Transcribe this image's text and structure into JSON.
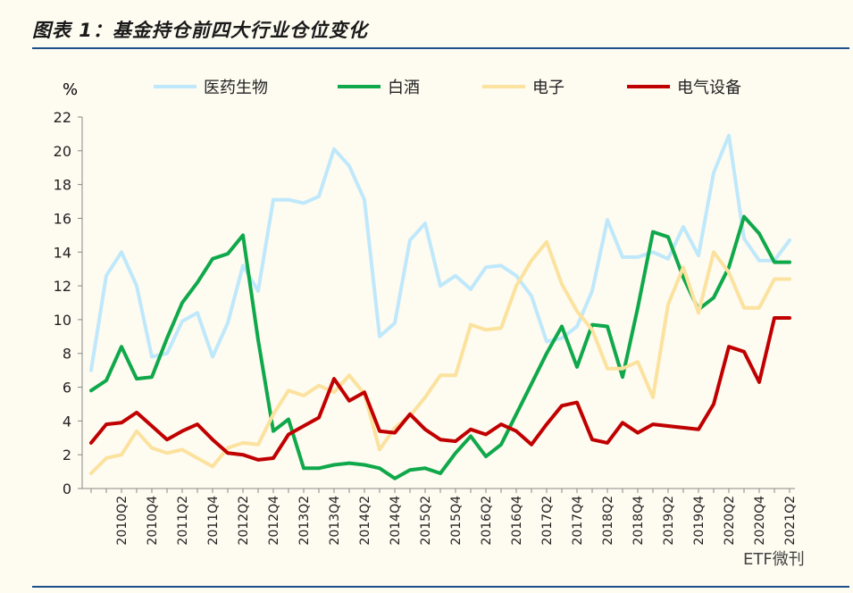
{
  "header": {
    "title": "图表 1：基金持仓前四大行业仓位变化"
  },
  "watermark": {
    "text": "ETF微刊"
  },
  "chart_data": {
    "type": "line",
    "title": "图表 1：基金持仓前四大行业仓位变化",
    "ylabel": "%",
    "ylim": [
      0,
      22
    ],
    "yticks": [
      0,
      2,
      4,
      6,
      8,
      10,
      12,
      14,
      16,
      18,
      20,
      22
    ],
    "grid": false,
    "legend_position": "top",
    "x_tick_labels": [
      "2010Q2",
      "2010Q4",
      "2011Q2",
      "2011Q4",
      "2012Q2",
      "2012Q4",
      "2013Q2",
      "2013Q4",
      "2014Q2",
      "2014Q4",
      "2015Q2",
      "2015Q4",
      "2016Q2",
      "2016Q4",
      "2017Q2",
      "2017Q4",
      "2018Q2",
      "2018Q4",
      "2019Q2",
      "2019Q4",
      "2020Q2",
      "2020Q4",
      "2021Q2"
    ],
    "x": [
      "2009Q4",
      "2010Q1",
      "2010Q2",
      "2010Q3",
      "2010Q4",
      "2011Q1",
      "2011Q2",
      "2011Q3",
      "2011Q4",
      "2012Q1",
      "2012Q2",
      "2012Q3",
      "2012Q4",
      "2013Q1",
      "2013Q2",
      "2013Q3",
      "2013Q4",
      "2014Q1",
      "2014Q2",
      "2014Q3",
      "2014Q4",
      "2015Q1",
      "2015Q2",
      "2015Q3",
      "2015Q4",
      "2016Q1",
      "2016Q2",
      "2016Q3",
      "2016Q4",
      "2017Q1",
      "2017Q2",
      "2017Q3",
      "2017Q4",
      "2018Q1",
      "2018Q2",
      "2018Q3",
      "2018Q4",
      "2019Q1",
      "2019Q2",
      "2019Q3",
      "2019Q4",
      "2020Q1",
      "2020Q2",
      "2020Q3",
      "2020Q4",
      "2021Q1",
      "2021Q2"
    ],
    "series": [
      {
        "name": "医药生物",
        "color": "#bfe8fb",
        "values": [
          7.0,
          12.6,
          14.0,
          12.0,
          7.8,
          8.0,
          9.9,
          10.4,
          7.8,
          9.8,
          13.2,
          11.7,
          17.1,
          17.1,
          16.9,
          17.3,
          20.1,
          19.1,
          17.1,
          9.0,
          9.8,
          14.7,
          15.7,
          12.0,
          12.6,
          11.8,
          13.1,
          13.2,
          12.6,
          11.4,
          8.7,
          8.9,
          9.6,
          11.7,
          15.9,
          13.7,
          13.7,
          14.0,
          13.6,
          15.5,
          13.8,
          18.7,
          20.9,
          14.8,
          13.5,
          13.5,
          14.7
        ]
      },
      {
        "name": "白酒",
        "color": "#0fa84a",
        "values": [
          5.8,
          6.4,
          8.4,
          6.5,
          6.6,
          8.9,
          11.0,
          12.2,
          13.6,
          13.9,
          15.0,
          8.8,
          3.4,
          4.1,
          1.2,
          1.2,
          1.4,
          1.5,
          1.4,
          1.2,
          0.6,
          1.1,
          1.2,
          0.9,
          2.1,
          3.1,
          1.9,
          2.6,
          4.4,
          6.2,
          8.0,
          9.6,
          7.2,
          9.7,
          9.6,
          6.6,
          10.7,
          15.2,
          14.9,
          12.5,
          10.6,
          11.3,
          13.1,
          16.1,
          15.1,
          13.4,
          13.4
        ]
      },
      {
        "name": "电子",
        "color": "#fbe29e",
        "values": [
          0.9,
          1.8,
          2.0,
          3.4,
          2.4,
          2.1,
          2.3,
          1.8,
          1.3,
          2.4,
          2.7,
          2.6,
          4.4,
          5.8,
          5.5,
          6.1,
          5.7,
          6.7,
          5.6,
          2.3,
          3.6,
          4.3,
          5.4,
          6.7,
          6.7,
          9.7,
          9.4,
          9.5,
          12.0,
          13.5,
          14.6,
          12.1,
          10.5,
          9.4,
          7.1,
          7.1,
          7.5,
          5.4,
          10.9,
          13.1,
          10.4,
          14.0,
          12.8,
          10.7,
          10.7,
          12.4,
          12.4
        ]
      },
      {
        "name": "电气设备",
        "color": "#c00000",
        "values": [
          2.7,
          3.8,
          3.9,
          4.5,
          3.7,
          2.9,
          3.4,
          3.8,
          2.9,
          2.1,
          2.0,
          1.7,
          1.8,
          3.2,
          3.7,
          4.2,
          6.5,
          5.2,
          5.7,
          3.4,
          3.3,
          4.4,
          3.5,
          2.9,
          2.8,
          3.5,
          3.2,
          3.8,
          3.4,
          2.6,
          3.8,
          4.9,
          5.1,
          2.9,
          2.7,
          3.9,
          3.3,
          3.8,
          3.7,
          3.6,
          3.5,
          5.0,
          8.4,
          8.1,
          6.3,
          10.1,
          10.1
        ]
      }
    ]
  }
}
